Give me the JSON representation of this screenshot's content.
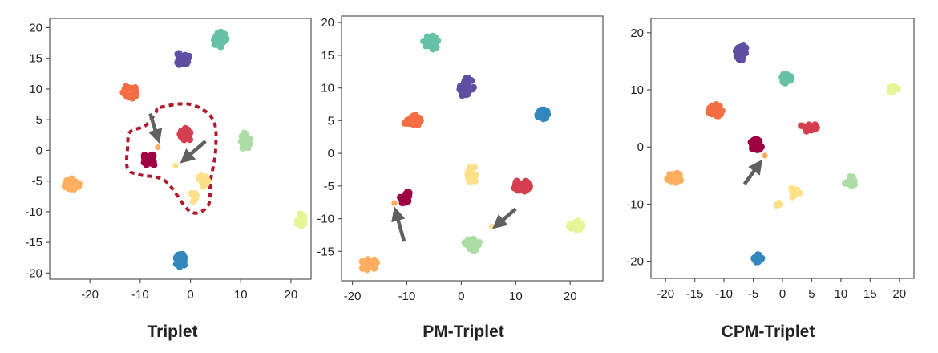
{
  "chart_data": [
    {
      "type": "scatter",
      "title": "Triplet",
      "xlim": [
        -28,
        24
      ],
      "ylim": [
        -21,
        21.5
      ],
      "xticks": [
        -20,
        -10,
        0,
        10,
        20
      ],
      "yticks": [
        20,
        15,
        10,
        5,
        0,
        -5,
        -10,
        -15,
        -20
      ],
      "grid": false,
      "legend": "none",
      "clusters": [
        {
          "color": "#66c2a5",
          "center": [
            6,
            18
          ],
          "spread": [
            1.5,
            1.3
          ],
          "n": 26
        },
        {
          "color": "#5e4fa2",
          "center": [
            -1.5,
            15
          ],
          "spread": [
            1.3,
            1.3
          ],
          "n": 26
        },
        {
          "color": "#f46d43",
          "center": [
            -12,
            9.5
          ],
          "spread": [
            1.5,
            1.1
          ],
          "n": 24
        },
        {
          "color": "#d53e4f",
          "center": [
            -1,
            2.5
          ],
          "spread": [
            1.2,
            1.1
          ],
          "n": 18
        },
        {
          "color": "#9e0142",
          "center": [
            -8,
            -1.5
          ],
          "spread": [
            1.6,
            1.1
          ],
          "n": 24
        },
        {
          "color": "#abdda4",
          "center": [
            11,
            1.5
          ],
          "spread": [
            1.1,
            1.4
          ],
          "n": 22
        },
        {
          "color": "#fdae61",
          "center": [
            -23.5,
            -5.5
          ],
          "spread": [
            1.7,
            0.9
          ],
          "n": 28
        },
        {
          "color": "#fee08b",
          "center": [
            2.5,
            -5
          ],
          "spread": [
            1.0,
            1.0
          ],
          "n": 14
        },
        {
          "color": "#fee08b",
          "center": [
            0.5,
            -7.5
          ],
          "spread": [
            0.9,
            0.8
          ],
          "n": 10
        },
        {
          "color": "#e6f598",
          "center": [
            22,
            -11.5
          ],
          "spread": [
            0.9,
            1.2
          ],
          "n": 20
        },
        {
          "color": "#3288bd",
          "center": [
            -2,
            -18
          ],
          "spread": [
            1.0,
            1.2
          ],
          "n": 26
        }
      ],
      "singles": [
        {
          "color": "#fdae61",
          "x": -6.5,
          "y": 0.5
        },
        {
          "color": "#fee08b",
          "x": -3,
          "y": -2.5
        }
      ],
      "arrows": [
        {
          "from": [
            -8,
            6
          ],
          "to": [
            -6.5,
            2
          ]
        },
        {
          "from": [
            3,
            1.5
          ],
          "to": [
            -1.2,
            -1.5
          ]
        }
      ],
      "boundary": [
        [
          -6,
          7
        ],
        [
          0,
          7.5
        ],
        [
          4.5,
          5
        ],
        [
          5,
          0
        ],
        [
          4,
          -5
        ],
        [
          3.5,
          -9
        ],
        [
          0,
          -10
        ],
        [
          -5,
          -5
        ],
        [
          -10,
          -4
        ],
        [
          -12.5,
          -3
        ],
        [
          -12.5,
          0.5
        ],
        [
          -12,
          3
        ],
        [
          -9,
          4
        ],
        [
          -7,
          6
        ]
      ]
    },
    {
      "type": "scatter",
      "title": "PM-Triplet",
      "xlim": [
        -22,
        26
      ],
      "ylim": [
        -19.5,
        21
      ],
      "xticks": [
        -20,
        -10,
        0,
        10,
        20
      ],
      "yticks": [
        20,
        15,
        10,
        5,
        0,
        -5,
        -10,
        -15
      ],
      "grid": false,
      "legend": "none",
      "clusters": [
        {
          "color": "#66c2a5",
          "center": [
            -5.5,
            17
          ],
          "spread": [
            1.5,
            1.1
          ],
          "n": 26
        },
        {
          "color": "#5e4fa2",
          "center": [
            1,
            10
          ],
          "spread": [
            1.3,
            1.6
          ],
          "n": 26
        },
        {
          "color": "#3288bd",
          "center": [
            15,
            6
          ],
          "spread": [
            1.0,
            0.9
          ],
          "n": 22
        },
        {
          "color": "#f46d43",
          "center": [
            -9,
            5
          ],
          "spread": [
            1.6,
            0.9
          ],
          "n": 22
        },
        {
          "color": "#fee08b",
          "center": [
            2,
            -3.5
          ],
          "spread": [
            0.9,
            1.6
          ],
          "n": 16
        },
        {
          "color": "#d53e4f",
          "center": [
            11,
            -5
          ],
          "spread": [
            1.6,
            0.9
          ],
          "n": 20
        },
        {
          "color": "#9e0142",
          "center": [
            -10.5,
            -6.5
          ],
          "spread": [
            1.1,
            1.2
          ],
          "n": 22
        },
        {
          "color": "#abdda4",
          "center": [
            2,
            -14
          ],
          "spread": [
            1.5,
            1.0
          ],
          "n": 22
        },
        {
          "color": "#e6f598",
          "center": [
            21,
            -11
          ],
          "spread": [
            1.3,
            0.8
          ],
          "n": 20
        },
        {
          "color": "#fdae61",
          "center": [
            -17,
            -17
          ],
          "spread": [
            1.6,
            0.9
          ],
          "n": 24
        }
      ],
      "singles": [
        {
          "color": "#fdae61",
          "x": -12.3,
          "y": -7.6
        },
        {
          "color": "#fee08b",
          "x": 5.6,
          "y": -11.2
        }
      ],
      "arrows": [
        {
          "from": [
            -10.5,
            -13.5
          ],
          "to": [
            -12,
            -9
          ]
        },
        {
          "from": [
            10,
            -8.5
          ],
          "to": [
            6.5,
            -11
          ]
        }
      ]
    },
    {
      "type": "scatter",
      "title": "CPM-Triplet",
      "xlim": [
        -22.5,
        22.5
      ],
      "ylim": [
        -23,
        22.5
      ],
      "xticks": [
        -20,
        -15,
        -10,
        -5,
        0,
        5,
        10,
        15,
        20
      ],
      "yticks": [
        20,
        10,
        0,
        -10,
        -20
      ],
      "grid": false,
      "legend": "none",
      "clusters": [
        {
          "color": "#5e4fa2",
          "center": [
            -7,
            16.5
          ],
          "spread": [
            1.0,
            1.4
          ],
          "n": 22
        },
        {
          "color": "#66c2a5",
          "center": [
            0.5,
            12
          ],
          "spread": [
            1.1,
            0.9
          ],
          "n": 22
        },
        {
          "color": "#e6f598",
          "center": [
            19,
            10
          ],
          "spread": [
            0.9,
            0.7
          ],
          "n": 16
        },
        {
          "color": "#f46d43",
          "center": [
            -11.5,
            6.5
          ],
          "spread": [
            1.3,
            1.2
          ],
          "n": 22
        },
        {
          "color": "#d53e4f",
          "center": [
            4.5,
            3.5
          ],
          "spread": [
            1.6,
            0.8
          ],
          "n": 20
        },
        {
          "color": "#9e0142",
          "center": [
            -4.5,
            0.5
          ],
          "spread": [
            1.0,
            1.2
          ],
          "n": 20
        },
        {
          "color": "#fdae61",
          "center": [
            -18.5,
            -5.5
          ],
          "spread": [
            1.3,
            1.0
          ],
          "n": 22
        },
        {
          "color": "#fee08b",
          "center": [
            2,
            -8
          ],
          "spread": [
            1.0,
            0.9
          ],
          "n": 12
        },
        {
          "color": "#fee08b",
          "center": [
            -0.8,
            -10
          ],
          "spread": [
            0.5,
            0.4
          ],
          "n": 6
        },
        {
          "color": "#abdda4",
          "center": [
            11.5,
            -6
          ],
          "spread": [
            1.1,
            0.9
          ],
          "n": 20
        },
        {
          "color": "#3288bd",
          "center": [
            -4.5,
            -19.5
          ],
          "spread": [
            1.0,
            0.8
          ],
          "n": 22
        }
      ],
      "singles": [
        {
          "color": "#fdae61",
          "x": -3,
          "y": -1.5
        }
      ],
      "arrows": [
        {
          "from": [
            -6.5,
            -6.5
          ],
          "to": [
            -4,
            -3
          ]
        }
      ]
    }
  ]
}
